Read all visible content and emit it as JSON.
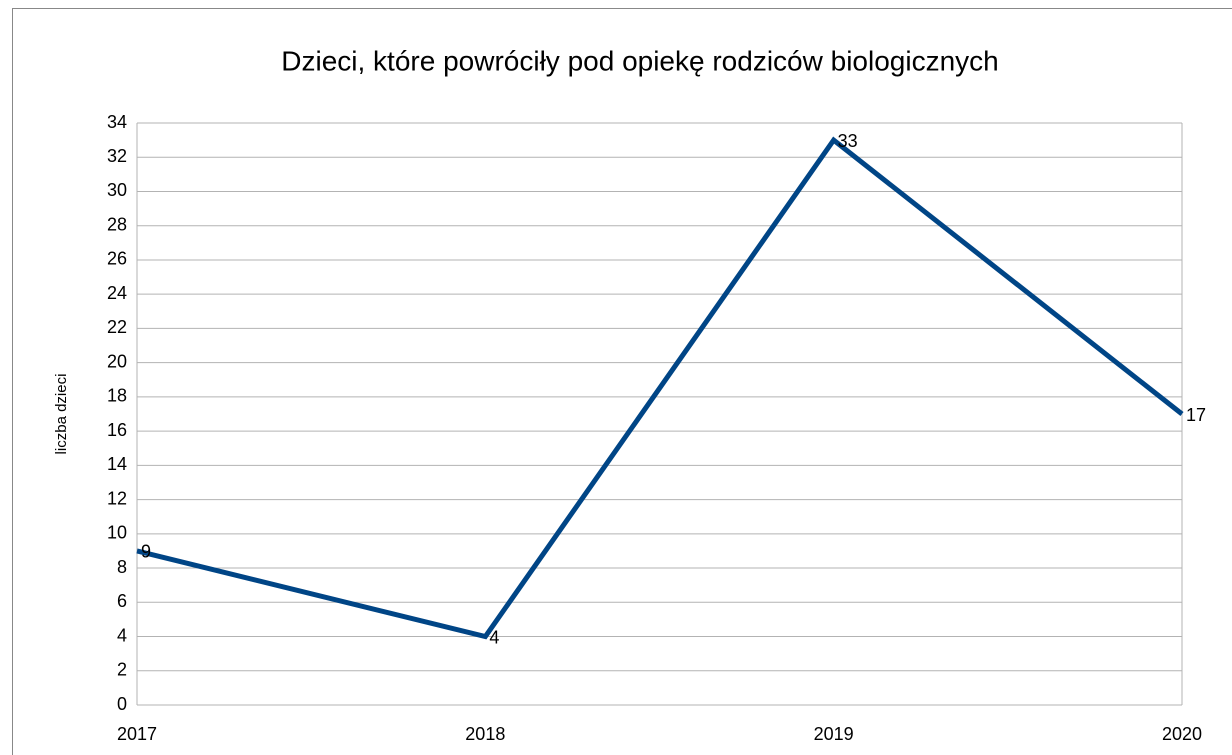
{
  "chart_data": {
    "type": "line",
    "title": "Dzieci, które powróciły pod opiekę rodziców biologicznych",
    "y_label": "liczba dzieci",
    "categories": [
      "2017",
      "2018",
      "2019",
      "2020"
    ],
    "series": [
      {
        "name": "liczba dzieci",
        "color": "#004586",
        "values": [
          9,
          4,
          33,
          17
        ]
      }
    ],
    "ylim": [
      0,
      34
    ],
    "yticks": [
      0,
      2,
      4,
      6,
      8,
      10,
      12,
      14,
      16,
      18,
      20,
      22,
      24,
      26,
      28,
      30,
      32,
      34
    ],
    "grid": true
  }
}
